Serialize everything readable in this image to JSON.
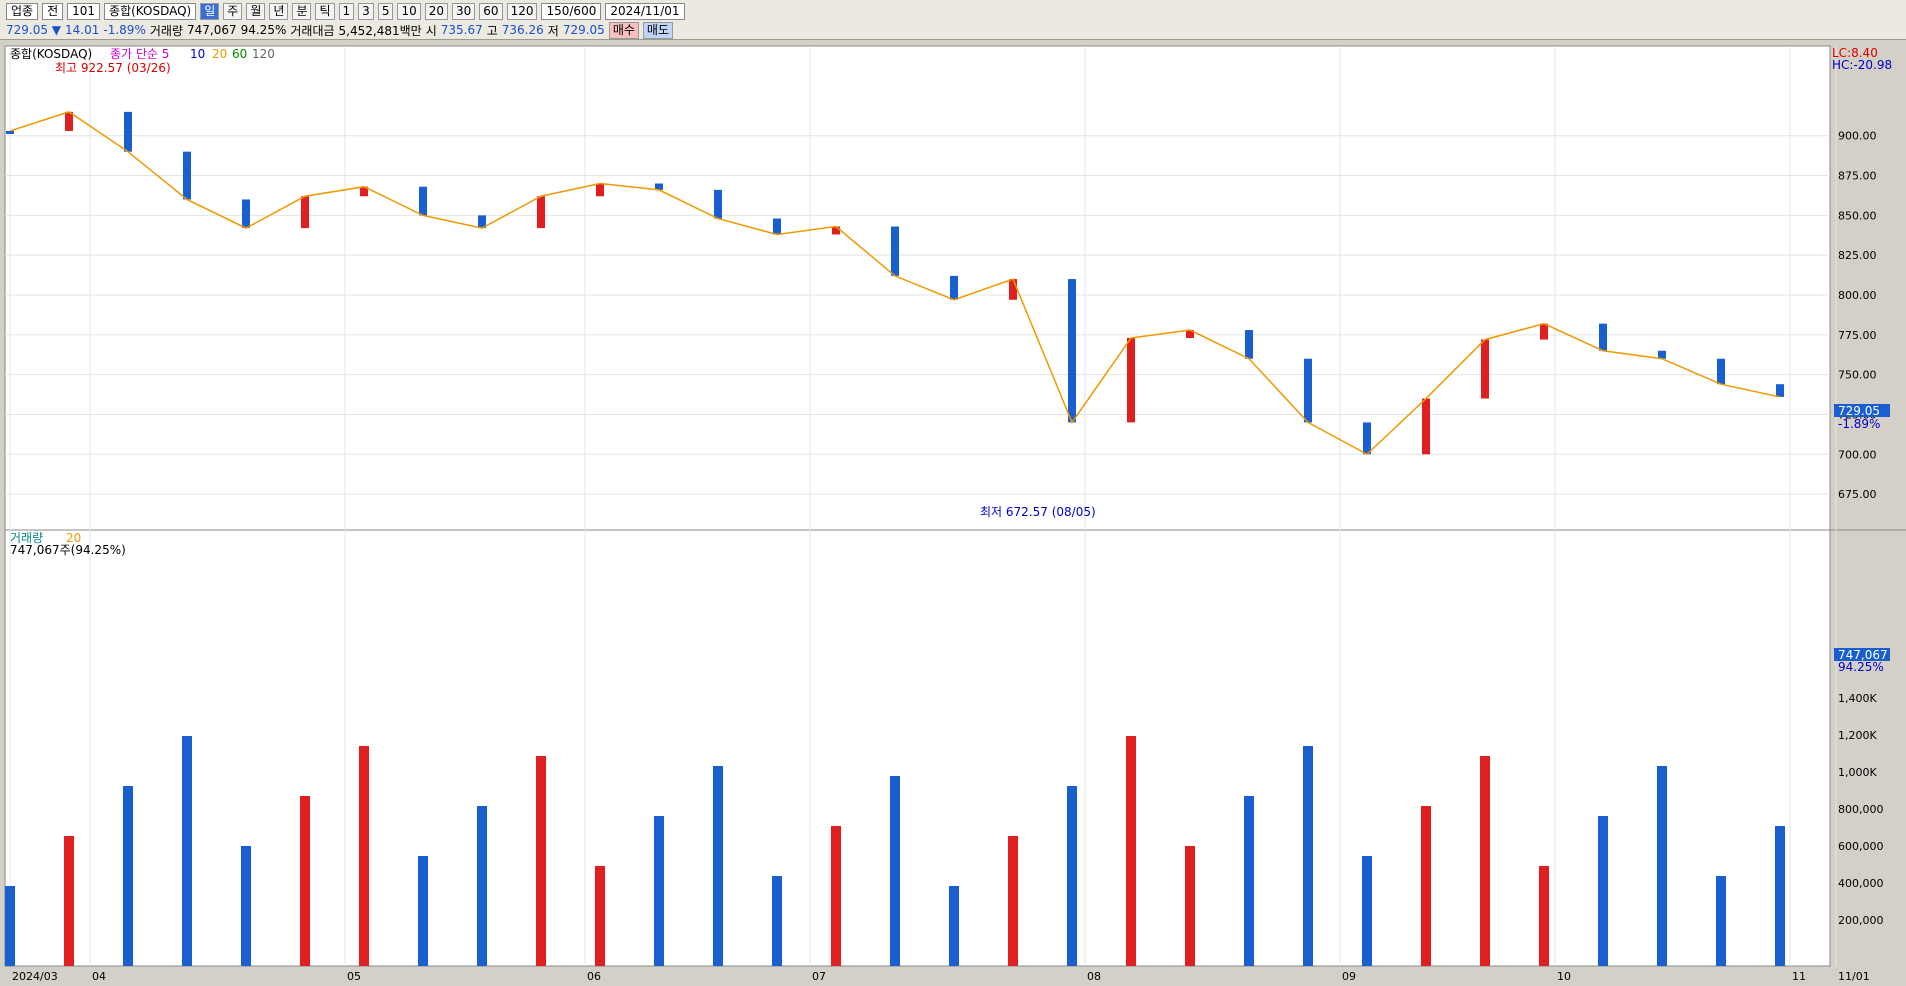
{
  "toolbar": {
    "sector": "업종",
    "mode": "전",
    "code": "101",
    "name": "종합(KOSDAQ)",
    "periods": [
      "일",
      "주",
      "월",
      "년",
      "분",
      "틱"
    ],
    "mins": [
      "1",
      "3",
      "5",
      "10",
      "20",
      "30",
      "60",
      "120"
    ],
    "count": "150/600",
    "date": "2024/11/01"
  },
  "quote": {
    "price": "729.05 ▼",
    "chg": "14.01",
    "pct": "-1.89%",
    "vol_label": "거래량",
    "vol": "747,067",
    "vol_pct": "94.25%",
    "amt_label": "거래대금",
    "amt": "5,452,481백만",
    "o_label": "시",
    "o": "735.67",
    "h_label": "고",
    "h": "736.26",
    "l_label": "저",
    "l": "729.05",
    "buy": "매수",
    "sell": "매도"
  },
  "chart_data": {
    "type": "candlestick",
    "title": "종합(KOSDAQ)",
    "legend": [
      "종가 단순 5",
      "10",
      "20",
      "60",
      "120"
    ],
    "high_note": "최고 922.57 (03/26)",
    "low_note": "최저 672.57 (08/05)",
    "lc": "LC:8.40",
    "hc": "HC:-20.98",
    "last": "729.05",
    "last_pct": "-1.89%",
    "ylim": [
      665,
      935
    ],
    "yticks": [
      675,
      700,
      725,
      750,
      775,
      800,
      825,
      850,
      875,
      900
    ],
    "months": [
      "2024/03",
      "04",
      "05",
      "06",
      "07",
      "08",
      "09",
      "10",
      "11",
      "11/01"
    ],
    "close_pts": [
      [
        0,
        903
      ],
      [
        10,
        915
      ],
      [
        20,
        890
      ],
      [
        30,
        860
      ],
      [
        40,
        842
      ],
      [
        50,
        862
      ],
      [
        60,
        868
      ],
      [
        70,
        850
      ],
      [
        80,
        842
      ],
      [
        90,
        862
      ],
      [
        100,
        870
      ],
      [
        110,
        866
      ],
      [
        120,
        848
      ],
      [
        130,
        838
      ],
      [
        140,
        843
      ],
      [
        150,
        812
      ],
      [
        160,
        797
      ],
      [
        170,
        810
      ],
      [
        180,
        720
      ],
      [
        190,
        773
      ],
      [
        200,
        778
      ],
      [
        210,
        760
      ],
      [
        220,
        720
      ],
      [
        230,
        700
      ],
      [
        240,
        735
      ],
      [
        250,
        772
      ],
      [
        260,
        782
      ],
      [
        270,
        765
      ],
      [
        280,
        760
      ],
      [
        290,
        744
      ],
      [
        300,
        736
      ]
    ],
    "vol_label": "거래량",
    "vol_ma": "20",
    "vol_value": "747,067주(94.25%)",
    "vol_yticks": [
      "200,000",
      "400,000",
      "600,000",
      "800,000",
      "1,000K",
      "1,200K",
      "1,400K"
    ],
    "vol_last": "747,067",
    "vol_last_pct": "94.25%"
  }
}
